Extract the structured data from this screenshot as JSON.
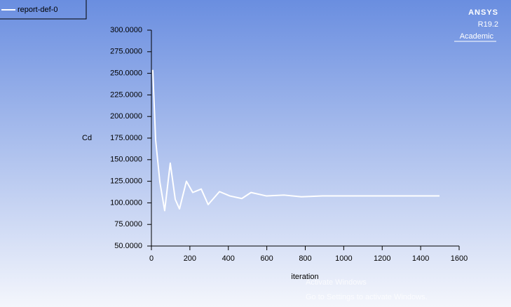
{
  "chart_data": {
    "type": "line",
    "xlabel": "iteration",
    "ylabel": "Cd",
    "x": [
      7,
      22,
      44,
      69,
      98,
      124,
      146,
      182,
      215,
      259,
      295,
      354,
      408,
      470,
      518,
      598,
      689,
      780,
      890,
      1035,
      1254,
      1498
    ],
    "series": [
      {
        "name": "report-def-0",
        "color": "#ffffff",
        "values": [
          254,
          172.6,
          124,
          91,
          146,
          104,
          93,
          125,
          112,
          116,
          98,
          113,
          108,
          105,
          112,
          108,
          109,
          107,
          108,
          108,
          108,
          108
        ]
      }
    ],
    "xlim": [
      0,
      1600
    ],
    "xticks": [
      0,
      200,
      400,
      600,
      800,
      1000,
      1200,
      1400,
      1600
    ],
    "ylim": [
      50,
      300
    ],
    "yticks": [
      {
        "value": 50,
        "label": "50.0000"
      },
      {
        "value": 75,
        "label": "75.0000"
      },
      {
        "value": 100,
        "label": "100.0000"
      },
      {
        "value": 125,
        "label": "125.0000"
      },
      {
        "value": 150,
        "label": "150.0000"
      },
      {
        "value": 175,
        "label": "175.0000"
      },
      {
        "value": 200,
        "label": "200.0000"
      },
      {
        "value": 225,
        "label": "225.0000"
      },
      {
        "value": 250,
        "label": "250.0000"
      },
      {
        "value": 275,
        "label": "275.0000"
      },
      {
        "value": 300,
        "label": "300.0000"
      }
    ],
    "legend": "top-left",
    "logo": {
      "brand": "ANSYS",
      "version": "R19.2",
      "edition": "Academic"
    },
    "watermark": {
      "title": "Activate Windows",
      "subtitle": "Go to Settings to activate Windows."
    }
  }
}
